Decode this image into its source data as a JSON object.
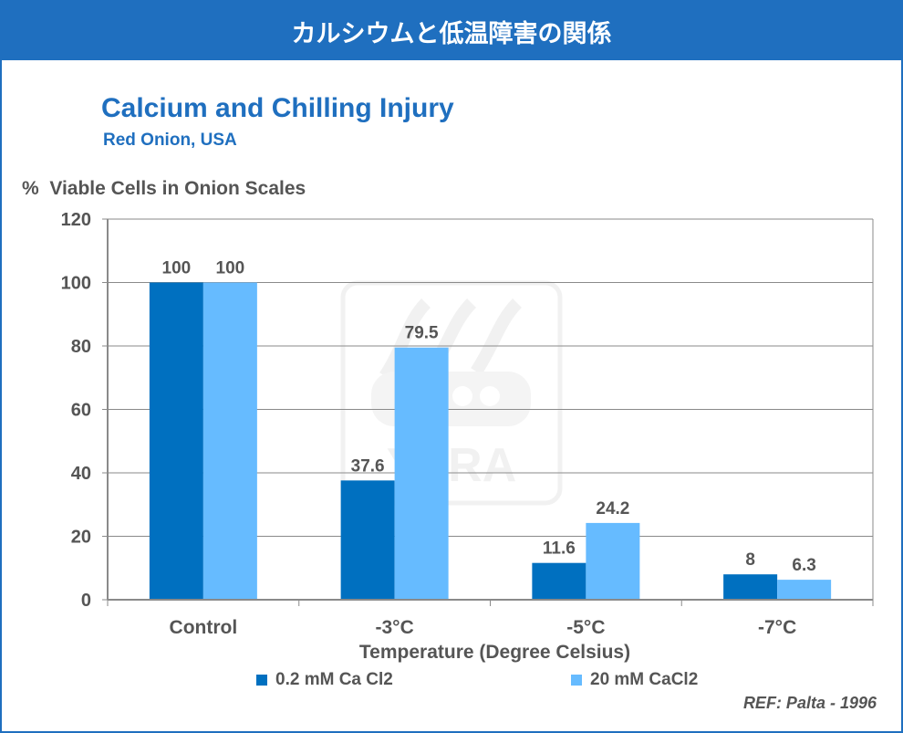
{
  "banner": {
    "text": "カルシウムと低温障害の関係"
  },
  "watermark": {
    "text": "YARA"
  },
  "reference": "REF: Palta - 1996",
  "colors": {
    "series1": "#0070c0",
    "series2": "#66bbff",
    "banner": "#1f6fbf",
    "title": "#1f6fbf",
    "text": "#555555"
  },
  "chart_data": {
    "type": "bar",
    "title": "Calcium and Chilling Injury",
    "subtitle": "Red Onion, USA",
    "ylabel": "%  Viable Cells in Onion Scales",
    "xlabel": "Temperature (Degree Celsius)",
    "categories": [
      "Control",
      "-3°C",
      "-5°C",
      "-7°C"
    ],
    "ylim": [
      0,
      120
    ],
    "yticks": [
      "0",
      "20",
      "40",
      "60",
      "80",
      "100",
      "120"
    ],
    "grid": true,
    "legend_position": "bottom",
    "series": [
      {
        "name": "0.2 mM Ca Cl2",
        "values": [
          100,
          37.6,
          11.6,
          8
        ],
        "labels": [
          "100",
          "37.6",
          "11.6",
          "8"
        ]
      },
      {
        "name": "20 mM CaCl2",
        "values": [
          100,
          79.5,
          24.2,
          6.3
        ],
        "labels": [
          "100",
          "79.5",
          "24.2",
          "6.3"
        ]
      }
    ]
  }
}
